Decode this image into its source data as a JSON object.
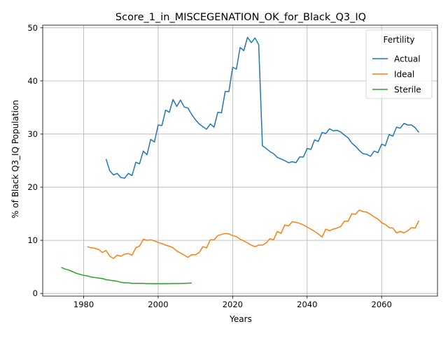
{
  "chart_data": {
    "type": "line",
    "title": "Score_1_in_MISCEGENATION_OK_for_Black_Q3_IQ",
    "xlabel": "Years",
    "ylabel": "% of Black Q3_IQ Population",
    "xlim": [
      1969,
      2075
    ],
    "ylim": [
      -0.5,
      50.5
    ],
    "xticks": [
      1980,
      2000,
      2020,
      2040,
      2060
    ],
    "yticks": [
      0,
      10,
      20,
      30,
      40,
      50
    ],
    "grid": true,
    "legend": {
      "title": "Fertility",
      "placement": "top-right"
    },
    "series": [
      {
        "name": "Actual",
        "color": "#1f77b4",
        "points": [
          [
            1986,
            25.3
          ],
          [
            1987,
            23.1
          ],
          [
            1988,
            22.3
          ],
          [
            1989,
            22.6
          ],
          [
            1990,
            21.8
          ],
          [
            1991,
            21.7
          ],
          [
            1992,
            22.6
          ],
          [
            1993,
            22.2
          ],
          [
            1994,
            24.7
          ],
          [
            1995,
            24.4
          ],
          [
            1996,
            26.8
          ],
          [
            1997,
            26.1
          ],
          [
            1998,
            29.0
          ],
          [
            1999,
            28.5
          ],
          [
            2000,
            31.7
          ],
          [
            2001,
            31.6
          ],
          [
            2002,
            34.5
          ],
          [
            2003,
            34.1
          ],
          [
            2004,
            36.5
          ],
          [
            2005,
            35.2
          ],
          [
            2006,
            36.4
          ],
          [
            2007,
            35.1
          ],
          [
            2008,
            34.9
          ],
          [
            2009,
            33.7
          ],
          [
            2010,
            32.7
          ],
          [
            2011,
            31.9
          ],
          [
            2012,
            31.4
          ],
          [
            2013,
            30.9
          ],
          [
            2014,
            31.9
          ],
          [
            2015,
            31.3
          ],
          [
            2016,
            34.1
          ],
          [
            2017,
            34.0
          ],
          [
            2018,
            38.0
          ],
          [
            2019,
            38.0
          ],
          [
            2020,
            42.6
          ],
          [
            2021,
            42.2
          ],
          [
            2022,
            46.3
          ],
          [
            2023,
            45.7
          ],
          [
            2024,
            48.2
          ],
          [
            2025,
            47.2
          ],
          [
            2026,
            48.1
          ],
          [
            2027,
            46.8
          ],
          [
            2028,
            27.8
          ],
          [
            2029,
            27.3
          ],
          [
            2030,
            26.7
          ],
          [
            2031,
            26.3
          ],
          [
            2032,
            25.6
          ],
          [
            2033,
            25.3
          ],
          [
            2034,
            25.0
          ],
          [
            2035,
            24.6
          ],
          [
            2036,
            24.8
          ],
          [
            2037,
            24.6
          ],
          [
            2038,
            25.7
          ],
          [
            2039,
            25.7
          ],
          [
            2040,
            27.3
          ],
          [
            2041,
            27.1
          ],
          [
            2042,
            28.9
          ],
          [
            2043,
            28.6
          ],
          [
            2044,
            30.3
          ],
          [
            2045,
            30.1
          ],
          [
            2046,
            31.0
          ],
          [
            2047,
            30.6
          ],
          [
            2048,
            30.7
          ],
          [
            2049,
            30.4
          ],
          [
            2050,
            29.8
          ],
          [
            2051,
            29.3
          ],
          [
            2052,
            28.3
          ],
          [
            2053,
            27.7
          ],
          [
            2054,
            26.9
          ],
          [
            2055,
            26.3
          ],
          [
            2056,
            26.2
          ],
          [
            2057,
            25.8
          ],
          [
            2058,
            26.8
          ],
          [
            2059,
            26.5
          ],
          [
            2060,
            28.1
          ],
          [
            2061,
            27.8
          ],
          [
            2062,
            29.9
          ],
          [
            2063,
            29.6
          ],
          [
            2064,
            31.3
          ],
          [
            2065,
            31.1
          ],
          [
            2066,
            32.0
          ],
          [
            2067,
            31.7
          ],
          [
            2068,
            31.7
          ],
          [
            2069,
            31.2
          ],
          [
            2070,
            30.3
          ]
        ]
      },
      {
        "name": "Ideal",
        "color": "#ff7f0e",
        "points": [
          [
            1981,
            8.8
          ],
          [
            1982,
            8.6
          ],
          [
            1983,
            8.5
          ],
          [
            1984,
            8.3
          ],
          [
            1985,
            7.7
          ],
          [
            1986,
            8.1
          ],
          [
            1987,
            7.0
          ],
          [
            1988,
            6.6
          ],
          [
            1989,
            7.2
          ],
          [
            1990,
            7.0
          ],
          [
            1991,
            7.4
          ],
          [
            1992,
            7.5
          ],
          [
            1993,
            7.2
          ],
          [
            1994,
            8.6
          ],
          [
            1995,
            8.9
          ],
          [
            1996,
            10.2
          ],
          [
            1997,
            10.0
          ],
          [
            1998,
            10.1
          ],
          [
            1999,
            9.9
          ],
          [
            2000,
            9.6
          ],
          [
            2001,
            9.4
          ],
          [
            2002,
            9.1
          ],
          [
            2003,
            8.9
          ],
          [
            2004,
            8.6
          ],
          [
            2005,
            8.0
          ],
          [
            2006,
            7.6
          ],
          [
            2007,
            7.2
          ],
          [
            2008,
            6.8
          ],
          [
            2009,
            7.3
          ],
          [
            2010,
            7.3
          ],
          [
            2011,
            7.7
          ],
          [
            2012,
            8.8
          ],
          [
            2013,
            8.6
          ],
          [
            2014,
            10.1
          ],
          [
            2015,
            10.1
          ],
          [
            2016,
            10.9
          ],
          [
            2017,
            11.1
          ],
          [
            2018,
            11.3
          ],
          [
            2019,
            11.2
          ],
          [
            2020,
            10.9
          ],
          [
            2021,
            10.7
          ],
          [
            2022,
            10.2
          ],
          [
            2023,
            9.9
          ],
          [
            2024,
            9.5
          ],
          [
            2025,
            9.1
          ],
          [
            2026,
            8.8
          ],
          [
            2027,
            9.1
          ],
          [
            2028,
            9.1
          ],
          [
            2029,
            9.5
          ],
          [
            2030,
            10.3
          ],
          [
            2031,
            10.1
          ],
          [
            2032,
            11.7
          ],
          [
            2033,
            11.3
          ],
          [
            2034,
            12.9
          ],
          [
            2035,
            12.7
          ],
          [
            2036,
            13.5
          ],
          [
            2037,
            13.4
          ],
          [
            2038,
            13.2
          ],
          [
            2039,
            12.9
          ],
          [
            2040,
            12.5
          ],
          [
            2041,
            12.1
          ],
          [
            2042,
            11.7
          ],
          [
            2043,
            11.2
          ],
          [
            2044,
            10.6
          ],
          [
            2045,
            12.1
          ],
          [
            2046,
            11.8
          ],
          [
            2047,
            12.1
          ],
          [
            2048,
            12.3
          ],
          [
            2049,
            12.6
          ],
          [
            2050,
            13.6
          ],
          [
            2051,
            13.6
          ],
          [
            2052,
            15.0
          ],
          [
            2053,
            14.9
          ],
          [
            2054,
            15.7
          ],
          [
            2055,
            15.4
          ],
          [
            2056,
            15.3
          ],
          [
            2057,
            14.9
          ],
          [
            2058,
            14.4
          ],
          [
            2059,
            14.0
          ],
          [
            2060,
            13.3
          ],
          [
            2061,
            13.0
          ],
          [
            2062,
            12.4
          ],
          [
            2063,
            12.3
          ],
          [
            2064,
            11.4
          ],
          [
            2065,
            11.7
          ],
          [
            2066,
            11.4
          ],
          [
            2067,
            11.8
          ],
          [
            2068,
            12.4
          ],
          [
            2069,
            12.3
          ],
          [
            2070,
            13.7
          ]
        ]
      },
      {
        "name": "Sterile",
        "color": "#2ca02c",
        "points": [
          [
            1974,
            4.9
          ],
          [
            1975,
            4.6
          ],
          [
            1976,
            4.4
          ],
          [
            1977,
            4.1
          ],
          [
            1978,
            3.8
          ],
          [
            1979,
            3.6
          ],
          [
            1980,
            3.4
          ],
          [
            1981,
            3.3
          ],
          [
            1982,
            3.1
          ],
          [
            1983,
            3.0
          ],
          [
            1984,
            2.9
          ],
          [
            1985,
            2.8
          ],
          [
            1986,
            2.6
          ],
          [
            1987,
            2.5
          ],
          [
            1988,
            2.4
          ],
          [
            1989,
            2.3
          ],
          [
            1990,
            2.1
          ],
          [
            1991,
            2.0
          ],
          [
            1992,
            2.0
          ],
          [
            1993,
            1.9
          ],
          [
            1994,
            1.9
          ],
          [
            1995,
            1.9
          ],
          [
            1996,
            1.9
          ],
          [
            1997,
            1.85
          ],
          [
            1998,
            1.85
          ],
          [
            1999,
            1.83
          ],
          [
            2000,
            1.82
          ],
          [
            2001,
            1.82
          ],
          [
            2002,
            1.84
          ],
          [
            2003,
            1.85
          ],
          [
            2004,
            1.86
          ],
          [
            2005,
            1.87
          ],
          [
            2006,
            1.88
          ],
          [
            2007,
            1.9
          ],
          [
            2008,
            1.93
          ],
          [
            2009,
            1.96
          ]
        ]
      }
    ]
  }
}
